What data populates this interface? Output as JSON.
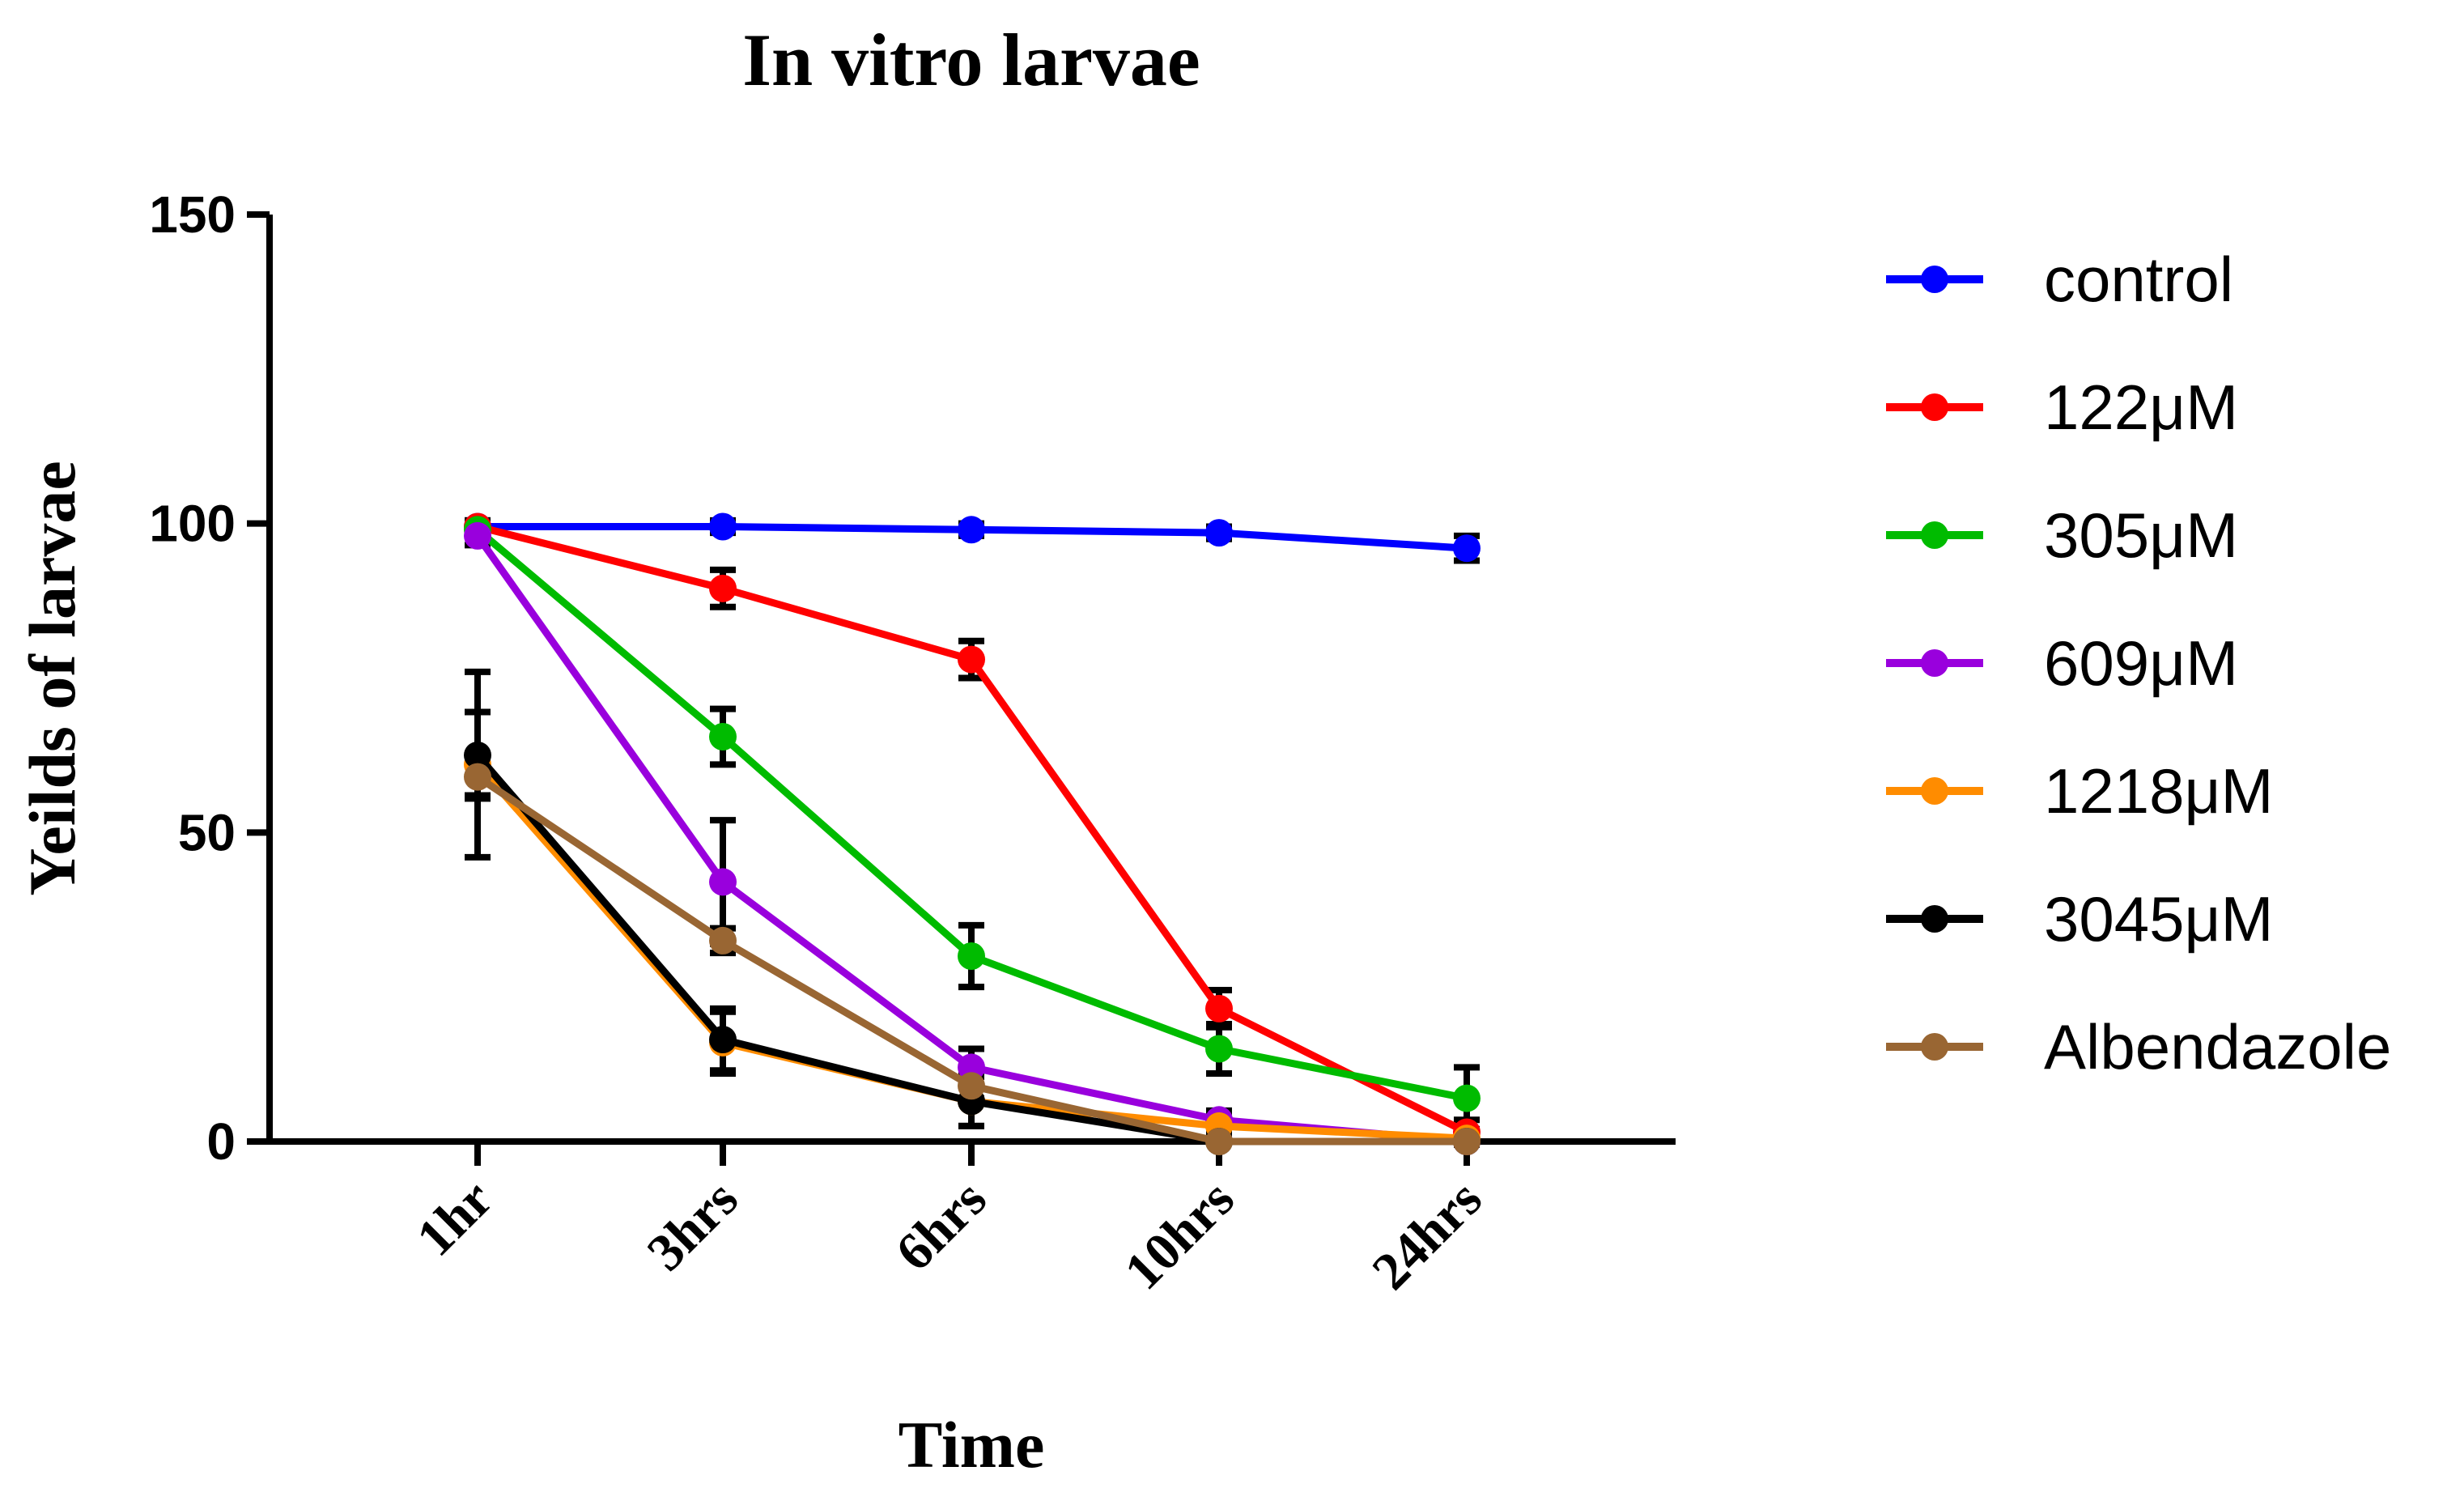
{
  "chart_data": {
    "type": "line",
    "title": "In vitro larvae",
    "xlabel": "Time",
    "ylabel": "Yeilds of larvae",
    "categories": [
      "1hr",
      "3hrs",
      "6hrs",
      "10hrs",
      "24hrs"
    ],
    "ylim": [
      0,
      150
    ],
    "yticks": [
      0,
      50,
      100,
      150
    ],
    "grid": false,
    "legend_position": "right",
    "series": [
      {
        "name": "control",
        "color": "#0000ff",
        "values": [
          99.5,
          99.5,
          99,
          98.5,
          96
        ],
        "errors": [
          1,
          1,
          1,
          1,
          2
        ]
      },
      {
        "name": "122μM",
        "color": "#ff0000",
        "values": [
          99.5,
          89.5,
          78,
          21.5,
          1.5
        ],
        "errors": [
          1,
          3,
          3,
          3,
          2
        ]
      },
      {
        "name": "305μM",
        "color": "#00bb00",
        "values": [
          99,
          65.5,
          30,
          15,
          7
        ],
        "errors": [
          1,
          4.5,
          5,
          4,
          5
        ]
      },
      {
        "name": "609μM",
        "color": "#9900dd",
        "values": [
          98,
          42,
          12,
          3.5,
          0
        ],
        "errors": [
          1.5,
          10,
          3,
          1.5,
          0
        ]
      },
      {
        "name": "1218μM",
        "color": "#ff8c00",
        "values": [
          61,
          16,
          6.5,
          2.5,
          0.5
        ],
        "errors": [
          15,
          5,
          4,
          1.5,
          0.5
        ]
      },
      {
        "name": "3045μM",
        "color": "#000000",
        "values": [
          62.5,
          16.5,
          6.5,
          0,
          0
        ],
        "errors": [
          7,
          5,
          4,
          0,
          0
        ]
      },
      {
        "name": "Albendazole",
        "color": "#996633",
        "values": [
          59,
          32.5,
          9,
          0,
          0
        ],
        "errors": [
          3,
          2,
          2,
          0,
          0
        ]
      }
    ]
  }
}
